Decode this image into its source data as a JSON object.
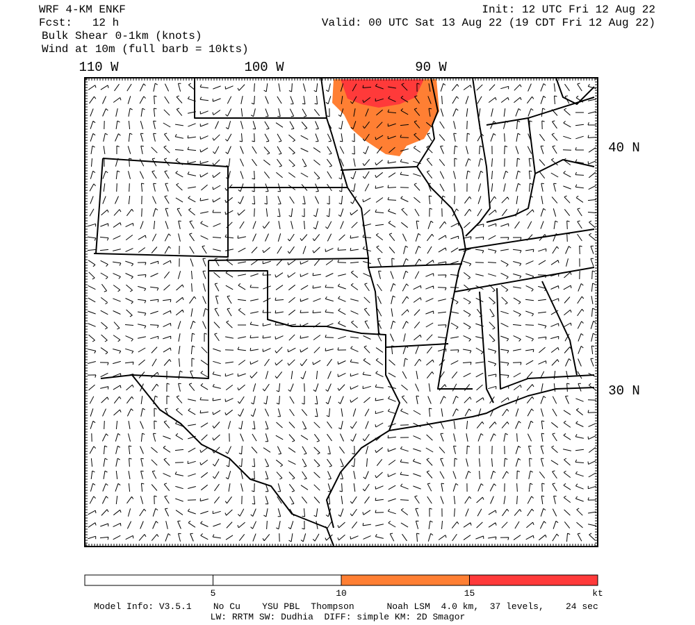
{
  "header": {
    "left": [
      "WRF 4-KM ENKF",
      "Fcst:   12 h",
      "Bulk Shear 0-1km (knots)",
      "Wind at 10m (full barb = 10kts)"
    ],
    "right": [
      "Init: 12 UTC Fri 12 Aug 22",
      "Valid: 00 UTC Sat 13 Aug 22 (19 CDT Fri 12 Aug 22)"
    ]
  },
  "map": {
    "lon_labels": [
      "110 W",
      "100 W",
      "90 W"
    ],
    "lat_labels": [
      "40 N",
      "30 N"
    ]
  },
  "colorbar": {
    "labels": [
      "5",
      "10",
      "15",
      "kt"
    ],
    "colors": [
      "#ffffff",
      "#ffffff",
      "#ff7f33",
      "#ff3a3a"
    ]
  },
  "footer": [
    "Model Info: V3.5.1    No Cu    YSU PBL  Thompson      Noah LSM  4.0 km,  37 levels,    24 sec",
    "LW: RRTM SW: Dudhia  DIFF: simple KM: 2D Smagor"
  ]
}
